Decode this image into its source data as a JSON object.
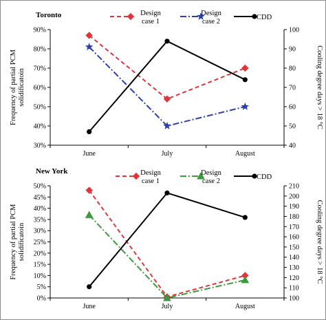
{
  "chart_data": [
    {
      "type": "line",
      "title": "Toronto",
      "categories": [
        "June",
        "July",
        "August"
      ],
      "ylabel": "Frequency of partial PCM solidificatoin",
      "ylabel2": "Cooling degree days > 18 °C",
      "y_left": {
        "lim": [
          30,
          90
        ],
        "step": 10,
        "suffix": "%"
      },
      "y_right": {
        "lim": [
          40,
          100
        ],
        "step": 10
      },
      "series": [
        {
          "name": "Design case 1",
          "legend_lines": [
            "Design",
            "case 1"
          ],
          "axis": "left",
          "values": [
            87,
            54,
            70
          ],
          "color": "#e0343a",
          "dash": "6,4",
          "marker": "diamond"
        },
        {
          "name": "Design case 2",
          "legend_lines": [
            "Design",
            "case 2"
          ],
          "axis": "left",
          "values": [
            81,
            40,
            50
          ],
          "color": "#2b3fae",
          "dash": "9,3,2,3",
          "marker": "star"
        },
        {
          "name": "CDD",
          "legend_lines": [
            "CDD"
          ],
          "axis": "right",
          "values": [
            47,
            94,
            74
          ],
          "color": "#000000",
          "dash": "",
          "marker": "circle"
        }
      ]
    },
    {
      "type": "line",
      "title": "New York",
      "categories": [
        "June",
        "July",
        "August"
      ],
      "ylabel": "Frequency of partial PCM solidificatoin",
      "ylabel2": "Cooling degree days > 18 °C",
      "y_left": {
        "lim": [
          0,
          50
        ],
        "step": 5,
        "suffix": "%"
      },
      "y_right": {
        "lim": [
          100,
          210
        ],
        "step": 10
      },
      "series": [
        {
          "name": "Design case 1",
          "legend_lines": [
            "Design",
            "case 1"
          ],
          "axis": "left",
          "values": [
            48,
            0.5,
            10
          ],
          "color": "#e0343a",
          "dash": "6,4",
          "marker": "diamond"
        },
        {
          "name": "Design case 2",
          "legend_lines": [
            "Design",
            "case 2"
          ],
          "axis": "left",
          "values": [
            37,
            0,
            8
          ],
          "color": "#3c9a3c",
          "dash": "9,3,2,3",
          "marker": "triangle"
        },
        {
          "name": "CDD",
          "legend_lines": [
            "CDD"
          ],
          "axis": "right",
          "values": [
            111,
            203,
            179
          ],
          "color": "#000000",
          "dash": "",
          "marker": "circle"
        }
      ]
    }
  ]
}
